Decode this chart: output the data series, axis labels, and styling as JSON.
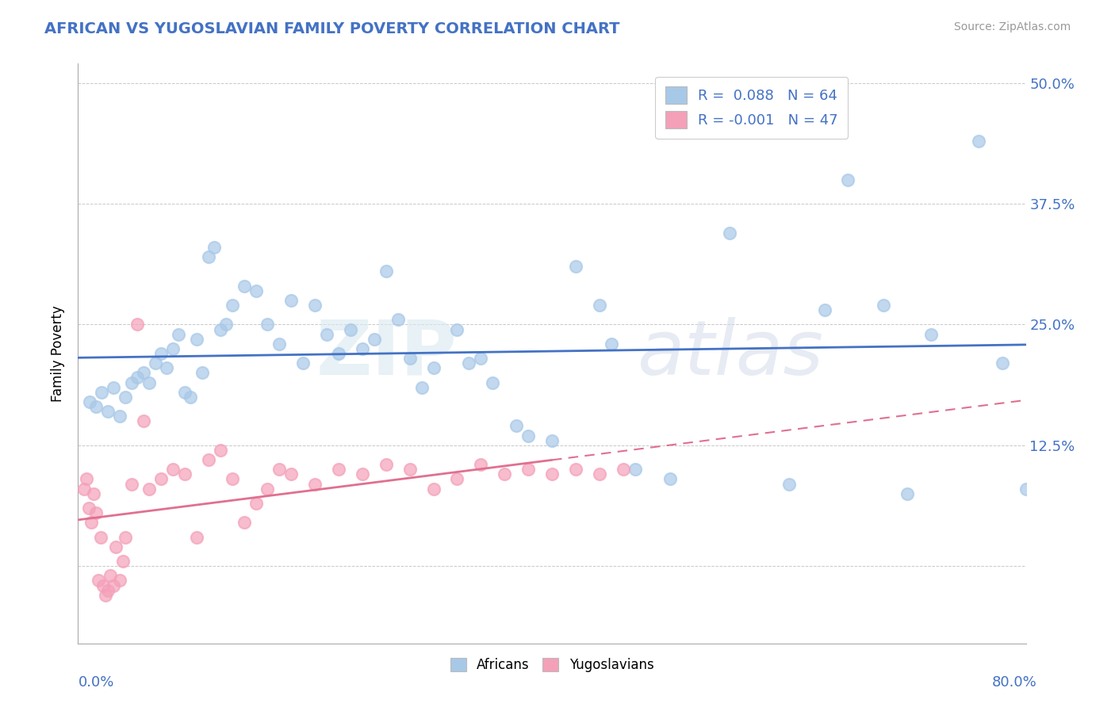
{
  "title": "AFRICAN VS YUGOSLAVIAN FAMILY POVERTY CORRELATION CHART",
  "source": "Source: ZipAtlas.com",
  "ylabel": "Family Poverty",
  "legend_line1": "R =  0.088   N = 64",
  "legend_line2": "R = -0.001   N = 47",
  "african_color": "#a8c8e8",
  "yugoslav_color": "#f4a0b8",
  "trend_african_color": "#4472c4",
  "trend_yugoslav_color": "#e07090",
  "background_color": "#ffffff",
  "grid_color": "#c8c8c8",
  "title_color": "#4472c4",
  "axis_label_color": "#4472c4",
  "xlim": [
    0,
    80
  ],
  "ylim": [
    -8,
    52
  ],
  "ytick_positions": [
    0,
    12.5,
    25.0,
    37.5,
    50.0
  ],
  "ytick_labels": [
    "",
    "12.5%",
    "25.0%",
    "37.5%",
    "50.0%"
  ],
  "african_x": [
    1.0,
    1.5,
    2.0,
    2.5,
    3.0,
    3.5,
    4.0,
    4.5,
    5.0,
    5.5,
    6.0,
    6.5,
    7.0,
    7.5,
    8.0,
    8.5,
    9.0,
    9.5,
    10.0,
    10.5,
    11.0,
    11.5,
    12.0,
    12.5,
    13.0,
    14.0,
    15.0,
    16.0,
    17.0,
    18.0,
    19.0,
    20.0,
    21.0,
    22.0,
    23.0,
    24.0,
    25.0,
    26.0,
    27.0,
    28.0,
    29.0,
    30.0,
    32.0,
    33.0,
    34.0,
    35.0,
    37.0,
    38.0,
    40.0,
    42.0,
    44.0,
    45.0,
    47.0,
    50.0,
    55.0,
    60.0,
    63.0,
    65.0,
    68.0,
    70.0,
    72.0,
    76.0,
    78.0,
    80.0
  ],
  "african_y": [
    17.0,
    16.5,
    18.0,
    16.0,
    18.5,
    15.5,
    17.5,
    19.0,
    19.5,
    20.0,
    19.0,
    21.0,
    22.0,
    20.5,
    22.5,
    24.0,
    18.0,
    17.5,
    23.5,
    20.0,
    32.0,
    33.0,
    24.5,
    25.0,
    27.0,
    29.0,
    28.5,
    25.0,
    23.0,
    27.5,
    21.0,
    27.0,
    24.0,
    22.0,
    24.5,
    22.5,
    23.5,
    30.5,
    25.5,
    21.5,
    18.5,
    20.5,
    24.5,
    21.0,
    21.5,
    19.0,
    14.5,
    13.5,
    13.0,
    31.0,
    27.0,
    23.0,
    10.0,
    9.0,
    34.5,
    8.5,
    26.5,
    40.0,
    27.0,
    7.5,
    24.0,
    44.0,
    21.0,
    8.0
  ],
  "yugoslav_x": [
    0.5,
    0.7,
    0.9,
    1.1,
    1.3,
    1.5,
    1.7,
    1.9,
    2.1,
    2.3,
    2.5,
    2.7,
    3.0,
    3.2,
    3.5,
    3.8,
    4.0,
    4.5,
    5.0,
    5.5,
    6.0,
    7.0,
    8.0,
    9.0,
    10.0,
    11.0,
    12.0,
    13.0,
    14.0,
    15.0,
    16.0,
    17.0,
    18.0,
    20.0,
    22.0,
    24.0,
    26.0,
    28.0,
    30.0,
    32.0,
    34.0,
    36.0,
    38.0,
    40.0,
    42.0,
    44.0,
    46.0
  ],
  "yugoslav_y": [
    8.0,
    9.0,
    6.0,
    4.5,
    7.5,
    5.5,
    -1.5,
    3.0,
    -2.0,
    -3.0,
    -2.5,
    -1.0,
    -2.0,
    2.0,
    -1.5,
    0.5,
    3.0,
    8.5,
    25.0,
    15.0,
    8.0,
    9.0,
    10.0,
    9.5,
    3.0,
    11.0,
    12.0,
    9.0,
    4.5,
    6.5,
    8.0,
    10.0,
    9.5,
    8.5,
    10.0,
    9.5,
    10.5,
    10.0,
    8.0,
    9.0,
    10.5,
    9.5,
    10.0,
    9.5,
    10.0,
    9.5,
    10.0
  ],
  "watermark_zip": "ZIP",
  "watermark_atlas": "atlas",
  "legend_items": [
    "Africans",
    "Yugoslavians"
  ]
}
